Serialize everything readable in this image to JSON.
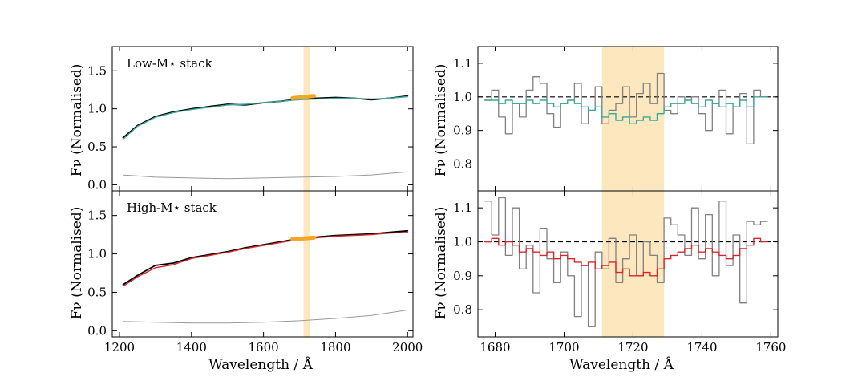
{
  "figure": {
    "xlabel": "Wavelength / Å",
    "ylabel": "Fν (Normalised)"
  },
  "chart_data": [
    {
      "panel": "left-top",
      "type": "line",
      "label": "Low-M⋆ stack",
      "xlim": [
        1180,
        2015
      ],
      "ylim": [
        -0.08,
        1.82
      ],
      "xticks": [
        1200,
        1400,
        1600,
        1800,
        2000
      ],
      "yticks": [
        0.0,
        0.5,
        1.0,
        1.5
      ],
      "yticklabels": [
        "0.0",
        "0.5",
        "1.0",
        "1.5"
      ],
      "shaded_band": [
        1711,
        1729
      ],
      "series": [
        {
          "role": "observed-stack",
          "color": "#000000",
          "x": [
            1210,
            1250,
            1300,
            1350,
            1400,
            1450,
            1500,
            1550,
            1600,
            1650,
            1700,
            1750,
            1800,
            1850,
            1900,
            1950,
            2000
          ],
          "y": [
            0.62,
            0.78,
            0.9,
            0.96,
            1.0,
            1.03,
            1.06,
            1.05,
            1.08,
            1.1,
            1.13,
            1.14,
            1.15,
            1.14,
            1.12,
            1.14,
            1.17
          ]
        },
        {
          "role": "model-fit",
          "color": "#3aa89a",
          "x": [
            1210,
            1250,
            1300,
            1350,
            1400,
            1450,
            1500,
            1550,
            1600,
            1650,
            1700,
            1750,
            1800,
            1850,
            1900,
            1950,
            2000
          ],
          "y": [
            0.6,
            0.77,
            0.89,
            0.95,
            0.99,
            1.02,
            1.05,
            1.06,
            1.08,
            1.1,
            1.12,
            1.13,
            1.14,
            1.14,
            1.13,
            1.14,
            1.16
          ]
        },
        {
          "role": "uncertainty",
          "color": "#999999",
          "x": [
            1210,
            1300,
            1400,
            1500,
            1600,
            1700,
            1800,
            1900,
            2000
          ],
          "y": [
            0.13,
            0.1,
            0.09,
            0.08,
            0.09,
            0.1,
            0.11,
            0.13,
            0.17
          ]
        },
        {
          "role": "highlight-fit",
          "color": "#f5a623",
          "x": [
            1680,
            1740
          ],
          "y": [
            1.14,
            1.17
          ]
        }
      ]
    },
    {
      "panel": "left-bottom",
      "type": "line",
      "label": "High-M⋆ stack",
      "xlim": [
        1180,
        2015
      ],
      "ylim": [
        -0.08,
        1.82
      ],
      "xticks": [
        1200,
        1400,
        1600,
        1800,
        2000
      ],
      "xticklabels": [
        "1200",
        "1400",
        "1600",
        "1800",
        "2000"
      ],
      "yticks": [
        0.0,
        0.5,
        1.0,
        1.5
      ],
      "yticklabels": [
        "0.0",
        "0.5",
        "1.0",
        "1.5"
      ],
      "shaded_band": [
        1711,
        1729
      ],
      "series": [
        {
          "role": "observed-stack",
          "color": "#000000",
          "x": [
            1210,
            1250,
            1300,
            1350,
            1400,
            1450,
            1500,
            1550,
            1600,
            1650,
            1700,
            1750,
            1800,
            1850,
            1900,
            1950,
            2000
          ],
          "y": [
            0.6,
            0.72,
            0.85,
            0.88,
            0.95,
            0.99,
            1.03,
            1.08,
            1.12,
            1.16,
            1.2,
            1.22,
            1.24,
            1.25,
            1.26,
            1.28,
            1.3
          ]
        },
        {
          "role": "model-fit",
          "color": "#d62728",
          "x": [
            1210,
            1250,
            1300,
            1350,
            1400,
            1450,
            1500,
            1550,
            1600,
            1650,
            1700,
            1750,
            1800,
            1850,
            1900,
            1950,
            2000
          ],
          "y": [
            0.58,
            0.7,
            0.82,
            0.86,
            0.94,
            0.98,
            1.02,
            1.07,
            1.11,
            1.15,
            1.19,
            1.21,
            1.23,
            1.24,
            1.25,
            1.27,
            1.28
          ]
        },
        {
          "role": "uncertainty",
          "color": "#999999",
          "x": [
            1210,
            1300,
            1400,
            1500,
            1600,
            1700,
            1800,
            1900,
            2000
          ],
          "y": [
            0.12,
            0.11,
            0.1,
            0.1,
            0.11,
            0.13,
            0.16,
            0.2,
            0.27
          ]
        },
        {
          "role": "highlight-fit",
          "color": "#f5a623",
          "x": [
            1680,
            1740
          ],
          "y": [
            1.19,
            1.21
          ]
        }
      ]
    },
    {
      "panel": "right-top",
      "type": "line",
      "xlim": [
        1675,
        1762
      ],
      "ylim": [
        0.72,
        1.15
      ],
      "xticks": [
        1680,
        1700,
        1720,
        1740,
        1760
      ],
      "yticks": [
        0.8,
        0.9,
        1.0,
        1.1
      ],
      "yticklabels": [
        "0.8",
        "0.9",
        "1.0",
        "1.1"
      ],
      "shaded_band": [
        1711,
        1729
      ],
      "reference_line": 1.0,
      "series": [
        {
          "role": "normalised-stack",
          "color": "#808080",
          "step": true,
          "x": [
            1678,
            1680,
            1682,
            1684,
            1686,
            1688,
            1690,
            1692,
            1694,
            1696,
            1698,
            1700,
            1702,
            1704,
            1706,
            1708,
            1710,
            1712,
            1714,
            1716,
            1718,
            1720,
            1722,
            1724,
            1726,
            1728,
            1730,
            1732,
            1734,
            1736,
            1738,
            1740,
            1742,
            1744,
            1746,
            1748,
            1750,
            1752,
            1754,
            1756,
            1758
          ],
          "y": [
            0.99,
            1.02,
            0.94,
            0.89,
            0.98,
            0.94,
            1.02,
            1.06,
            1.04,
            0.95,
            0.91,
            0.98,
            0.99,
            1.04,
            0.92,
            0.96,
            1.03,
            0.92,
            0.96,
            0.98,
            1.03,
            0.94,
            1.01,
            1.04,
            0.98,
            1.07,
            0.96,
            0.95,
            1.0,
            0.99,
            1.0,
            0.95,
            0.9,
            0.98,
            1.02,
            0.89,
            0.97,
            1.01,
            0.86,
            1.02,
            1.0
          ]
        },
        {
          "role": "model-fit",
          "color": "#3aa89a",
          "step": true,
          "x": [
            1678,
            1680,
            1682,
            1684,
            1686,
            1688,
            1690,
            1692,
            1694,
            1696,
            1698,
            1700,
            1702,
            1704,
            1706,
            1708,
            1710,
            1712,
            1714,
            1716,
            1718,
            1720,
            1722,
            1724,
            1726,
            1728,
            1730,
            1732,
            1734,
            1736,
            1738,
            1740,
            1742,
            1744,
            1746,
            1748,
            1750,
            1752,
            1754,
            1756,
            1758
          ],
          "y": [
            0.99,
            0.99,
            0.98,
            0.99,
            0.98,
            0.98,
            0.99,
            0.98,
            0.99,
            0.98,
            0.97,
            0.98,
            0.99,
            0.98,
            0.97,
            0.96,
            0.97,
            0.94,
            0.95,
            0.93,
            0.94,
            0.92,
            0.93,
            0.94,
            0.93,
            0.95,
            0.97,
            0.98,
            0.98,
            0.99,
            0.98,
            0.97,
            0.99,
            0.98,
            0.97,
            0.98,
            0.97,
            0.99,
            0.97,
            1.0,
            1.0
          ]
        }
      ]
    },
    {
      "panel": "right-bottom",
      "type": "line",
      "xlim": [
        1675,
        1762
      ],
      "ylim": [
        0.72,
        1.15
      ],
      "xticks": [
        1680,
        1700,
        1720,
        1740,
        1760
      ],
      "xticklabels": [
        "1680",
        "1700",
        "1720",
        "1740",
        "1760"
      ],
      "yticks": [
        0.8,
        0.9,
        1.0,
        1.1
      ],
      "yticklabels": [
        "0.8",
        "0.9",
        "1.0",
        "1.1"
      ],
      "shaded_band": [
        1711,
        1729
      ],
      "reference_line": 1.0,
      "series": [
        {
          "role": "normalised-stack",
          "color": "#808080",
          "step": true,
          "x": [
            1678,
            1680,
            1682,
            1684,
            1686,
            1688,
            1690,
            1692,
            1694,
            1696,
            1698,
            1700,
            1702,
            1704,
            1706,
            1708,
            1710,
            1712,
            1714,
            1716,
            1718,
            1720,
            1722,
            1724,
            1726,
            1728,
            1730,
            1732,
            1734,
            1736,
            1738,
            1740,
            1742,
            1744,
            1746,
            1748,
            1750,
            1752,
            1754,
            1756,
            1758
          ],
          "y": [
            1.12,
            1.02,
            1.13,
            0.96,
            1.1,
            0.92,
            0.99,
            0.85,
            1.04,
            0.95,
            0.88,
            0.97,
            0.9,
            0.78,
            0.93,
            0.75,
            0.97,
            0.92,
            1.01,
            0.88,
            0.95,
            1.02,
            0.9,
            1.0,
            0.96,
            0.88,
            1.07,
            1.05,
            1.02,
            0.96,
            1.1,
            0.95,
            1.08,
            0.9,
            1.12,
            0.93,
            1.02,
            0.82,
            1.06,
            1.05,
            1.06
          ]
        },
        {
          "role": "model-fit",
          "color": "#d62728",
          "step": true,
          "x": [
            1678,
            1680,
            1682,
            1684,
            1686,
            1688,
            1690,
            1692,
            1694,
            1696,
            1698,
            1700,
            1702,
            1704,
            1706,
            1708,
            1710,
            1712,
            1714,
            1716,
            1718,
            1720,
            1722,
            1724,
            1726,
            1728,
            1730,
            1732,
            1734,
            1736,
            1738,
            1740,
            1742,
            1744,
            1746,
            1748,
            1750,
            1752,
            1754,
            1756,
            1758
          ],
          "y": [
            1.0,
            1.01,
            0.99,
            1.0,
            0.99,
            0.97,
            0.98,
            0.97,
            0.96,
            0.97,
            0.95,
            0.96,
            0.95,
            0.94,
            0.93,
            0.94,
            0.92,
            0.93,
            0.94,
            0.91,
            0.92,
            0.9,
            0.9,
            0.91,
            0.9,
            0.92,
            0.95,
            0.96,
            0.97,
            0.98,
            0.99,
            0.97,
            0.98,
            0.97,
            0.96,
            0.95,
            0.96,
            0.98,
            0.99,
            1.01,
            1.0
          ]
        }
      ]
    }
  ]
}
